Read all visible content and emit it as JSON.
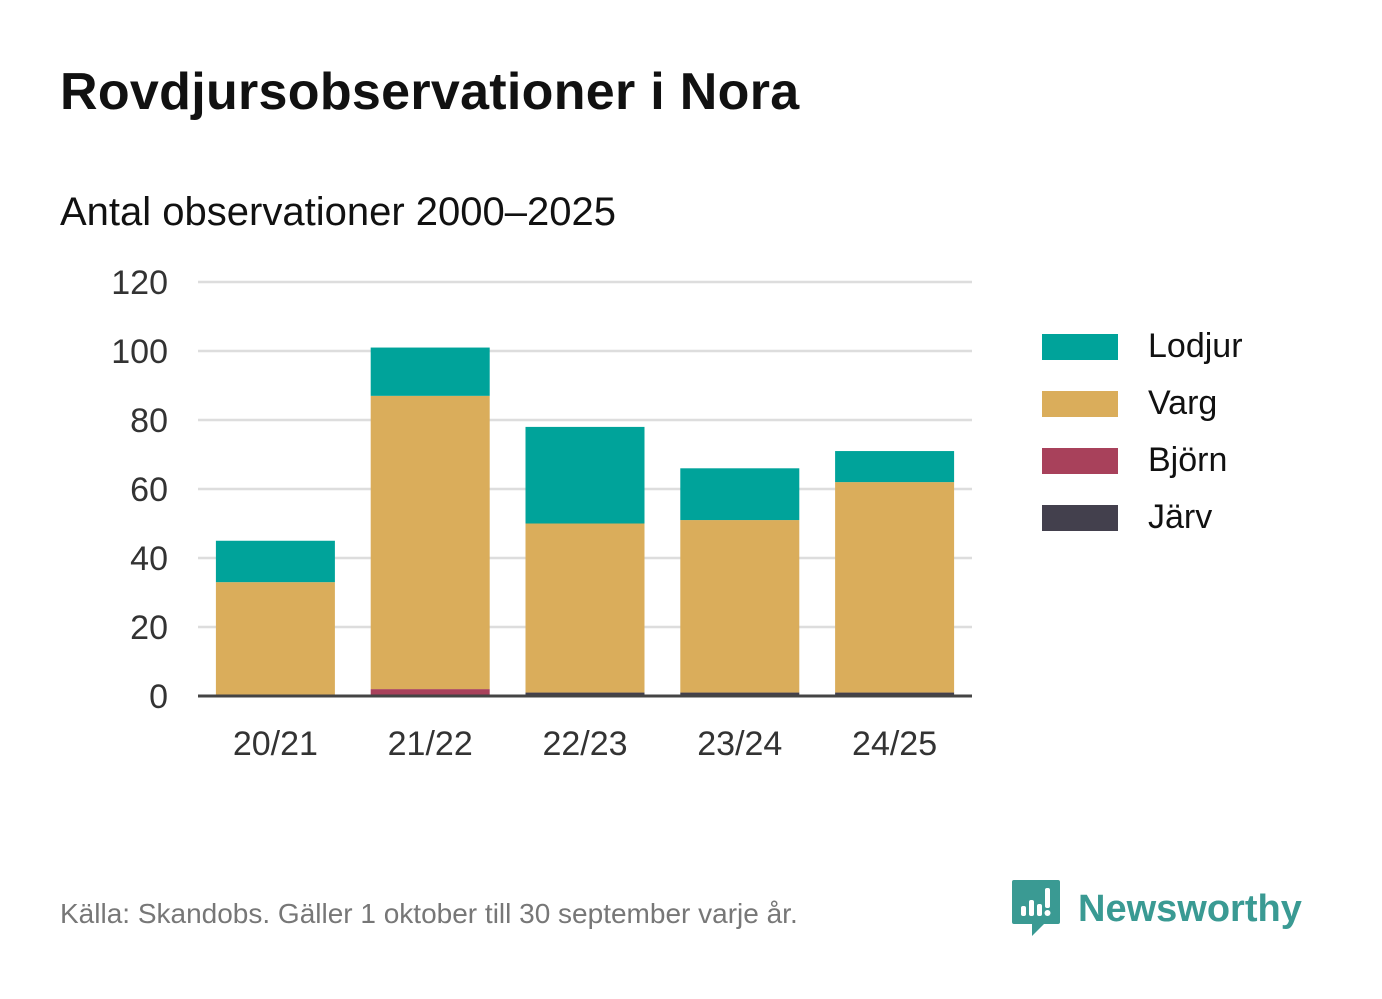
{
  "header": {
    "title": "Rovdjursobservationer i Nora",
    "subtitle": "Antal observationer 2000–2025"
  },
  "chart_data": {
    "type": "bar",
    "stacked": true,
    "categories": [
      "20/21",
      "21/22",
      "22/23",
      "23/24",
      "24/25"
    ],
    "series": [
      {
        "name": "Järv",
        "color": "#43404d",
        "values": [
          0,
          0,
          1,
          1,
          1
        ]
      },
      {
        "name": "Björn",
        "color": "#a8415b",
        "values": [
          0,
          2,
          0,
          0,
          0
        ]
      },
      {
        "name": "Varg",
        "color": "#daad5b",
        "values": [
          33,
          85,
          49,
          50,
          61
        ]
      },
      {
        "name": "Lodjur",
        "color": "#00a39a",
        "values": [
          12,
          14,
          28,
          15,
          9
        ]
      }
    ],
    "yticks": [
      0,
      20,
      40,
      60,
      80,
      100,
      120
    ],
    "ylim": [
      0,
      120
    ],
    "grid": true,
    "legend_position": "right"
  },
  "legend": {
    "items": [
      {
        "label": "Lodjur",
        "color": "#00a39a"
      },
      {
        "label": "Varg",
        "color": "#daad5b"
      },
      {
        "label": "Björn",
        "color": "#a8415b"
      },
      {
        "label": "Järv",
        "color": "#43404d"
      }
    ]
  },
  "footer": {
    "source": "Källa: Skandobs. Gäller 1 oktober till 30 september varje år.",
    "brand": "Newsworthy",
    "brand_color": "#3a9a93"
  }
}
